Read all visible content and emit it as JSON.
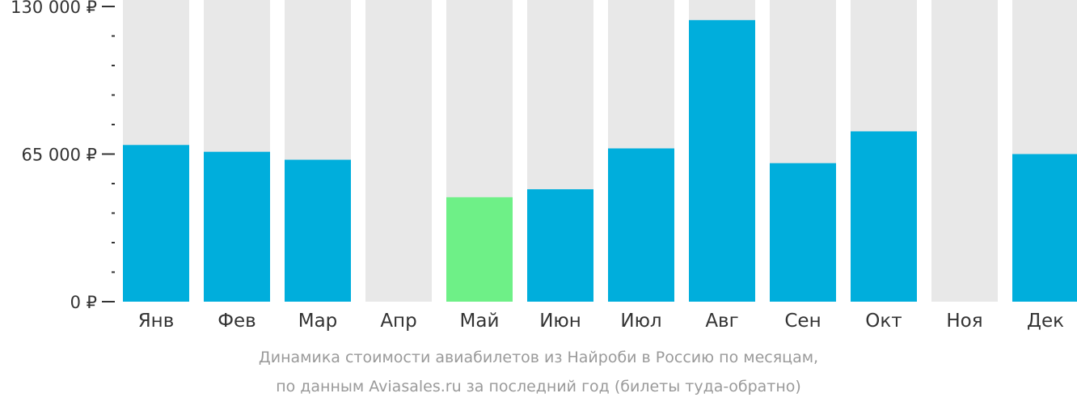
{
  "chart_data": {
    "type": "bar",
    "categories": [
      "Янв",
      "Фев",
      "Мар",
      "Апр",
      "Май",
      "Июн",
      "Июл",
      "Авг",
      "Сен",
      "Окт",
      "Ноя",
      "Дек"
    ],
    "values": [
      69000,
      66000,
      62500,
      null,
      46000,
      49500,
      67500,
      124000,
      61000,
      75000,
      null,
      65000
    ],
    "ylim": [
      0,
      130000
    ],
    "yticks": [
      {
        "value": 130000,
        "label": "130 000 ₽"
      },
      {
        "value": 65000,
        "label": "65 000 ₽"
      },
      {
        "value": 0,
        "label": "0 ₽"
      }
    ],
    "highlight_index": 4,
    "colors": {
      "bar": "#00aedc",
      "highlight": "#6ef087",
      "background_column": "#e8e8e8",
      "axis": "#333333"
    },
    "xlabel": "",
    "ylabel": "",
    "grid": false
  },
  "caption": {
    "line1": "Динамика стоимости авиабилетов из Найроби в Россию по месяцам,",
    "line2": "по данным Aviasales.ru за последний год (билеты туда-обратно)"
  }
}
